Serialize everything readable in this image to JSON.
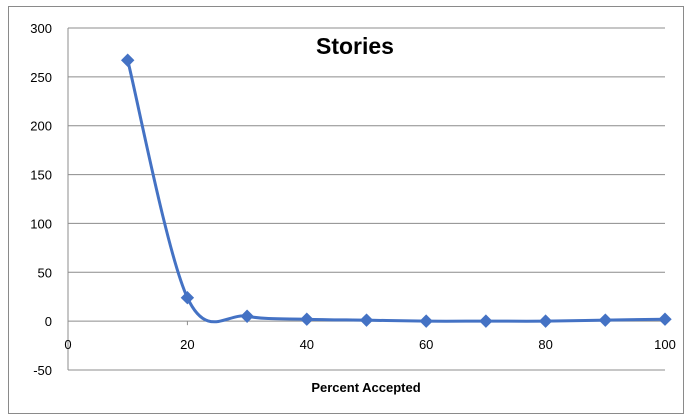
{
  "chart_data": {
    "type": "line",
    "title": "Stories",
    "xlabel": "Percent Accepted",
    "ylabel": "",
    "xlim": [
      0,
      100
    ],
    "ylim": [
      -50,
      300
    ],
    "x_ticks": [
      "0",
      "20",
      "40",
      "60",
      "80",
      "100"
    ],
    "y_ticks": [
      "300",
      "250",
      "200",
      "150",
      "100",
      "50",
      "0",
      "-50"
    ],
    "grid": "horizontal",
    "legend": "none",
    "series": [
      {
        "color": "#4472C4",
        "marker": "diamond",
        "smooth": true,
        "x": [
          10,
          20,
          30,
          40,
          50,
          60,
          70,
          80,
          90,
          100
        ],
        "y": [
          267,
          24,
          5,
          2,
          1,
          0,
          0,
          0,
          1,
          2
        ]
      }
    ]
  }
}
